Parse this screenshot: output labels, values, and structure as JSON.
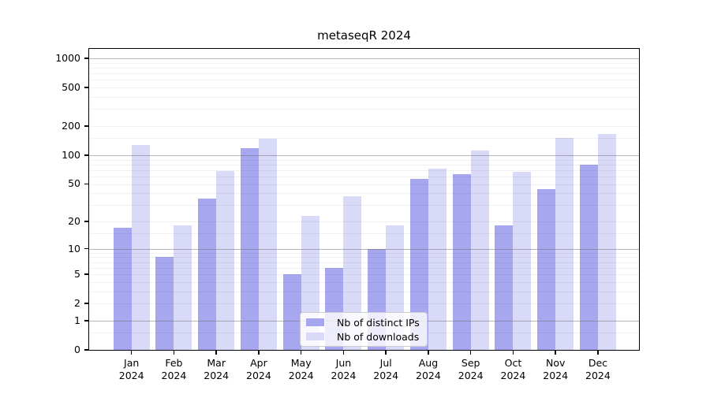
{
  "title": "metaseqR 2024",
  "legend": {
    "items": [
      {
        "label": "Nb of distinct IPs",
        "color": "#a7a7f0"
      },
      {
        "label": "Nb of downloads",
        "color": "#d9d9f8"
      }
    ],
    "position": "lower center inside"
  },
  "chart_data": {
    "type": "bar",
    "title": "metaseqR 2024",
    "categories": [
      "Jan 2024",
      "Feb 2024",
      "Mar 2024",
      "Apr 2024",
      "May 2024",
      "Jun 2024",
      "Jul 2024",
      "Aug 2024",
      "Sep 2024",
      "Oct 2024",
      "Nov 2024",
      "Dec 2024"
    ],
    "series": [
      {
        "name": "Nb of distinct IPs",
        "color": "#a7a7f0",
        "values": [
          17,
          8,
          35,
          118,
          5,
          6,
          10,
          57,
          63,
          18,
          44,
          79
        ]
      },
      {
        "name": "Nb of downloads",
        "color": "#d9d9f8",
        "values": [
          127,
          18,
          69,
          149,
          23,
          37,
          18,
          73,
          112,
          67,
          152,
          166
        ]
      }
    ],
    "xlabel": "",
    "ylabel": "",
    "y_scale": "log10(1+x)",
    "y_ticks": [
      0,
      1,
      2,
      5,
      10,
      20,
      50,
      100,
      200,
      500,
      1000
    ],
    "y_major_gridlines": [
      1,
      10,
      100,
      1000
    ],
    "y_minor_gridlines": [
      0.5,
      2,
      3,
      4,
      5,
      6,
      7,
      8,
      9,
      15,
      20,
      30,
      40,
      50,
      60,
      70,
      80,
      90,
      150,
      200,
      300,
      400,
      500,
      600,
      700,
      800,
      900
    ],
    "ylim": [
      0,
      1250
    ],
    "grid": true,
    "legend_position": "lower center"
  }
}
